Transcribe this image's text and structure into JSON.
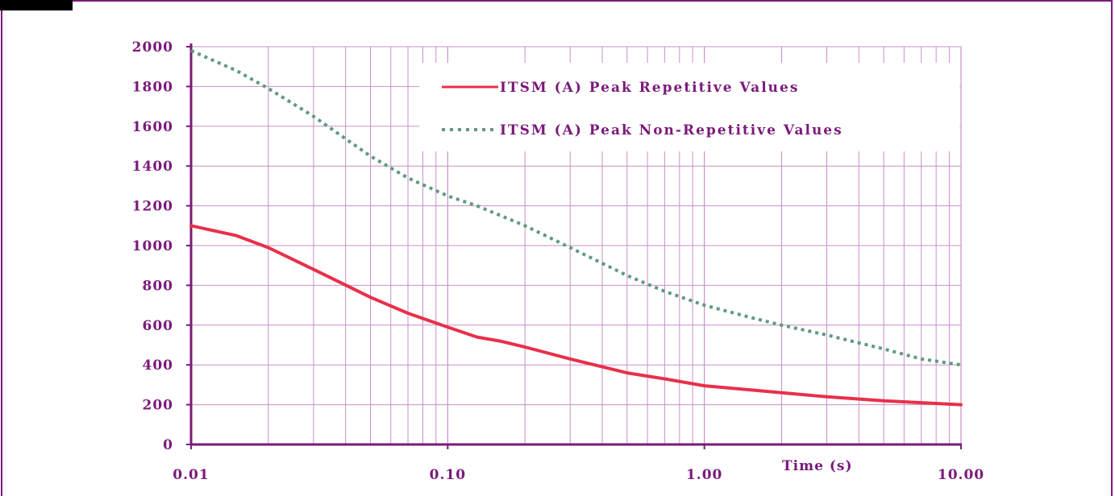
{
  "chart_data": {
    "type": "line",
    "x_scale": "log",
    "xlim": [
      0.01,
      10
    ],
    "ylim": [
      0,
      2000
    ],
    "grid": true,
    "legend_position": "top-right",
    "xlabel": "Time (s)",
    "ylabel": "",
    "title": "",
    "x_tick_labels": [
      "0.01",
      "0.10",
      "1.00",
      "10.00"
    ],
    "y_tick_labels": [
      "0",
      "200",
      "400",
      "600",
      "800",
      "1000",
      "1200",
      "1400",
      "1600",
      "1800",
      "2000"
    ],
    "series": [
      {
        "name": "ITSM (A) Peak Repetitive Values",
        "style": "solid",
        "color": "#e8304a",
        "x": [
          0.01,
          0.015,
          0.02,
          0.03,
          0.05,
          0.07,
          0.1,
          0.13,
          0.16,
          0.2,
          0.3,
          0.5,
          0.7,
          1.0,
          1.5,
          2.0,
          3.0,
          5.0,
          7.0,
          10.0
        ],
        "y": [
          1100,
          1050,
          990,
          880,
          740,
          660,
          590,
          540,
          520,
          490,
          430,
          360,
          330,
          295,
          275,
          260,
          240,
          220,
          210,
          200
        ]
      },
      {
        "name": "ITSM (A) Peak Non-Repetitive Values",
        "style": "dotted",
        "color": "#5f9a80",
        "x": [
          0.01,
          0.015,
          0.02,
          0.03,
          0.05,
          0.07,
          0.1,
          0.13,
          0.2,
          0.3,
          0.5,
          0.7,
          1.0,
          1.5,
          2.0,
          3.0,
          5.0,
          7.0,
          10.0
        ],
        "y": [
          1980,
          1880,
          1790,
          1650,
          1450,
          1340,
          1250,
          1200,
          1100,
          990,
          850,
          770,
          700,
          640,
          600,
          550,
          480,
          430,
          400
        ]
      }
    ]
  },
  "colors": {
    "axis": "#7a1a7a",
    "grid": "#c890c8"
  }
}
